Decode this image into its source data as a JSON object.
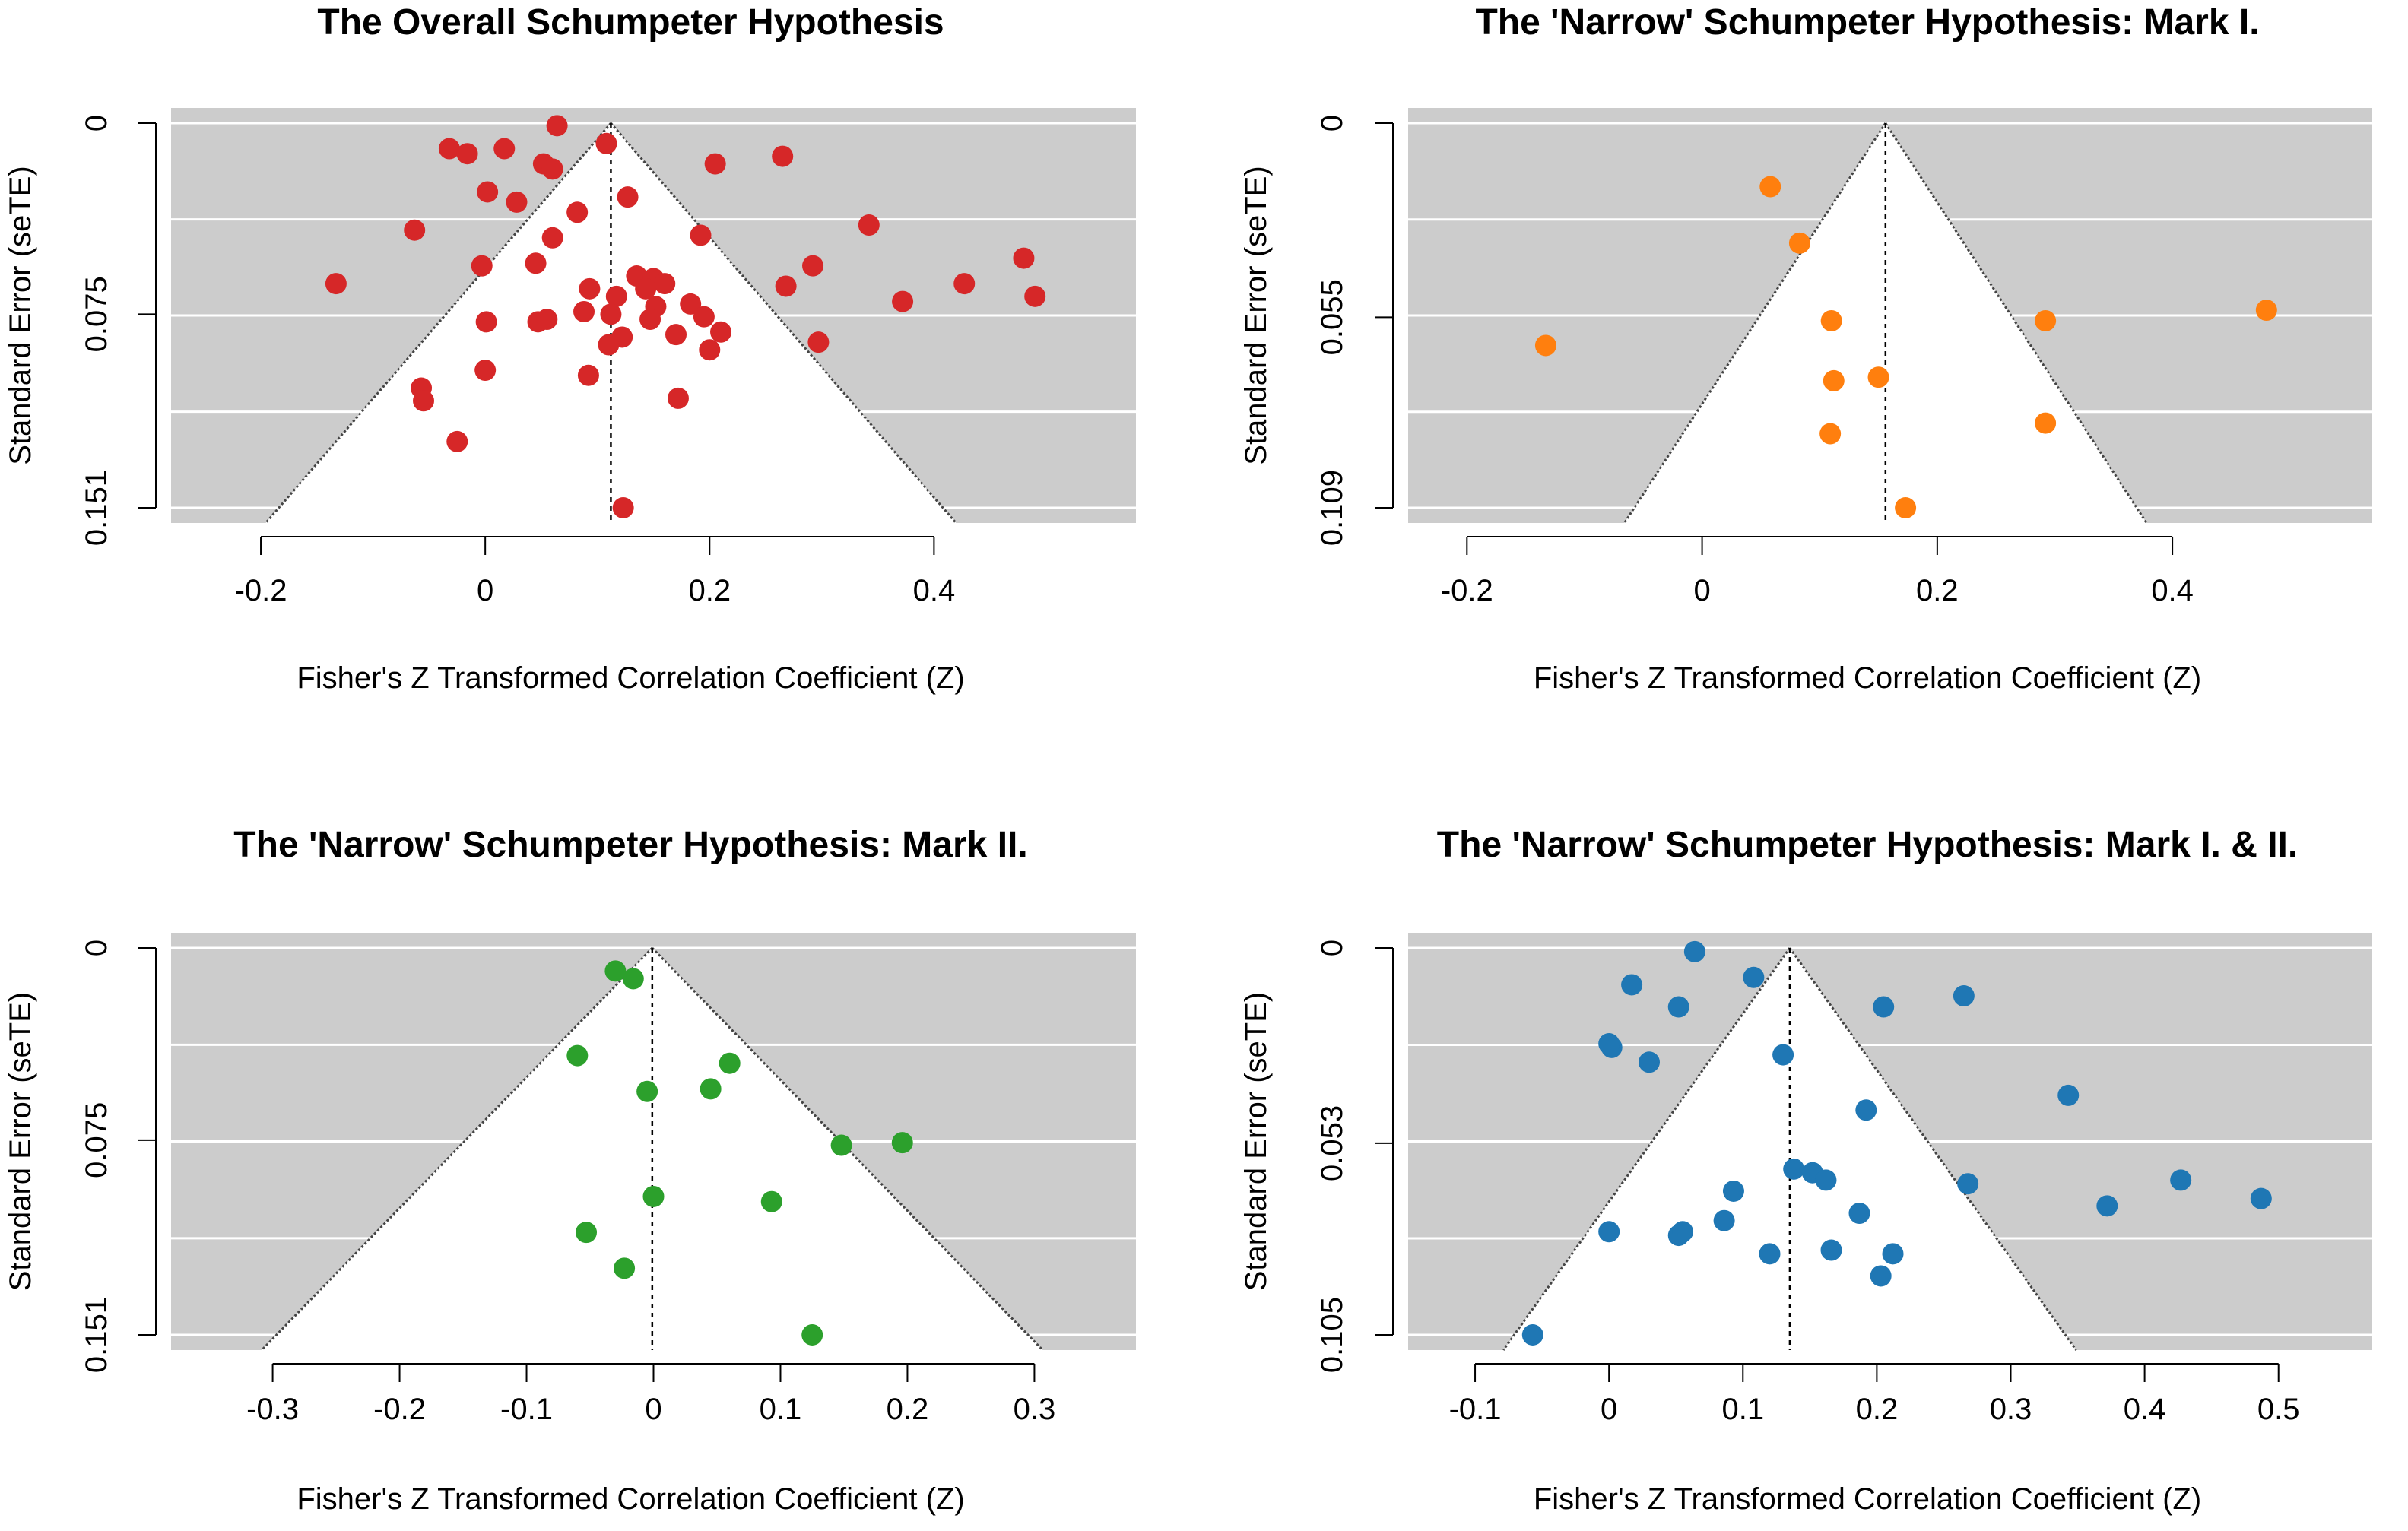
{
  "chart_data": [
    {
      "type": "scatter",
      "title": "The Overall Schumpeter Hypothesis",
      "xlabel": "Fisher's Z Transformed Correlation Coefficient (Z)",
      "ylabel": "Standard Error (seTE)",
      "xlim": [
        -0.28,
        0.58
      ],
      "ylim": [
        0.151,
        0
      ],
      "xticks": [
        -0.2,
        0,
        0.2,
        0.4
      ],
      "xtick_labels": [
        "-0.2",
        "0",
        "0.2",
        "0.4"
      ],
      "yticks": [
        0,
        0.075,
        0.151
      ],
      "ytick_labels": [
        "0",
        "0.075",
        "0.151"
      ],
      "y_gridlines": [
        0,
        0.0378,
        0.0755,
        0.1133,
        0.151
      ],
      "pooled_estimate": 0.112,
      "funnel": "pseudo 95% confidence region",
      "point_color": "#d62728",
      "points": [
        [
          0.064,
          0.001
        ],
        [
          -0.032,
          0.01
        ],
        [
          -0.016,
          0.012
        ],
        [
          0.017,
          0.01
        ],
        [
          0.108,
          0.008
        ],
        [
          0.052,
          0.016
        ],
        [
          0.06,
          0.018
        ],
        [
          0.205,
          0.016
        ],
        [
          0.265,
          0.013
        ],
        [
          0.002,
          0.027
        ],
        [
          0.028,
          0.031
        ],
        [
          0.127,
          0.029
        ],
        [
          0.082,
          0.035
        ],
        [
          -0.063,
          0.042
        ],
        [
          0.06,
          0.045
        ],
        [
          0.192,
          0.044
        ],
        [
          0.342,
          0.04
        ],
        [
          0.48,
          0.053
        ],
        [
          0.045,
          0.055
        ],
        [
          -0.003,
          0.056
        ],
        [
          0.292,
          0.056
        ],
        [
          -0.133,
          0.063
        ],
        [
          0.135,
          0.06
        ],
        [
          0.15,
          0.061
        ],
        [
          0.16,
          0.063
        ],
        [
          0.268,
          0.064
        ],
        [
          0.427,
          0.063
        ],
        [
          0.49,
          0.068
        ],
        [
          0.093,
          0.065
        ],
        [
          0.117,
          0.068
        ],
        [
          0.143,
          0.065
        ],
        [
          0.372,
          0.07
        ],
        [
          0.183,
          0.071
        ],
        [
          0.088,
          0.074
        ],
        [
          0.112,
          0.075
        ],
        [
          0.152,
          0.072
        ],
        [
          0.195,
          0.076
        ],
        [
          0.047,
          0.078
        ],
        [
          0.055,
          0.077
        ],
        [
          0.001,
          0.078
        ],
        [
          0.147,
          0.077
        ],
        [
          0.21,
          0.082
        ],
        [
          0.17,
          0.083
        ],
        [
          0.122,
          0.084
        ],
        [
          0.11,
          0.087
        ],
        [
          0.297,
          0.086
        ],
        [
          0.2,
          0.089
        ],
        [
          0.0,
          0.097
        ],
        [
          0.092,
          0.099
        ],
        [
          -0.057,
          0.104
        ],
        [
          -0.055,
          0.109
        ],
        [
          0.172,
          0.108
        ],
        [
          -0.025,
          0.125
        ],
        [
          0.123,
          0.151
        ]
      ]
    },
    {
      "type": "scatter",
      "title": "The 'Narrow' Schumpeter Hypothesis: Mark I.",
      "xlabel": "Fisher's Z Transformed Correlation Coefficient (Z)",
      "ylabel": "Standard Error (seTE)",
      "xlim": [
        -0.25,
        0.57
      ],
      "ylim": [
        0.109,
        0
      ],
      "xticks": [
        -0.2,
        0,
        0.2,
        0.4
      ],
      "xtick_labels": [
        "-0.2",
        "0",
        "0.2",
        "0.4"
      ],
      "yticks": [
        0,
        0.055,
        0.109
      ],
      "ytick_labels": [
        "0",
        "0.055",
        "0.109"
      ],
      "y_gridlines": [
        0,
        0.0273,
        0.0545,
        0.0818,
        0.109
      ],
      "pooled_estimate": 0.156,
      "funnel": "pseudo 95% confidence region",
      "point_color": "#ff7f0e",
      "points": [
        [
          0.058,
          0.018
        ],
        [
          0.083,
          0.034
        ],
        [
          0.11,
          0.056
        ],
        [
          0.292,
          0.056
        ],
        [
          0.48,
          0.053
        ],
        [
          -0.133,
          0.063
        ],
        [
          0.112,
          0.073
        ],
        [
          0.15,
          0.072
        ],
        [
          0.292,
          0.085
        ],
        [
          0.109,
          0.088
        ],
        [
          0.173,
          0.109
        ]
      ]
    },
    {
      "type": "scatter",
      "title": "The 'Narrow' Schumpeter Hypothesis: Mark II.",
      "xlabel": "Fisher's Z Transformed Correlation Coefficient (Z)",
      "ylabel": "Standard Error (seTE)",
      "xlim": [
        -0.38,
        0.38
      ],
      "ylim": [
        0.151,
        0
      ],
      "xticks": [
        -0.3,
        -0.2,
        -0.1,
        0,
        0.1,
        0.2,
        0.3
      ],
      "xtick_labels": [
        "-0.3",
        "-0.2",
        "-0.1",
        "0",
        "0.1",
        "0.2",
        "0.3"
      ],
      "yticks": [
        0,
        0.075,
        0.151
      ],
      "ytick_labels": [
        "0",
        "0.075",
        "0.151"
      ],
      "y_gridlines": [
        0,
        0.0378,
        0.0755,
        0.1133,
        0.151
      ],
      "pooled_estimate": -0.001,
      "funnel": "pseudo 95% confidence region",
      "point_color": "#2ca02c",
      "points": [
        [
          -0.03,
          0.009
        ],
        [
          -0.016,
          0.012
        ],
        [
          -0.06,
          0.042
        ],
        [
          0.06,
          0.045
        ],
        [
          -0.005,
          0.056
        ],
        [
          0.045,
          0.055
        ],
        [
          0.148,
          0.077
        ],
        [
          0.196,
          0.076
        ],
        [
          0.0,
          0.097
        ],
        [
          0.093,
          0.099
        ],
        [
          -0.053,
          0.111
        ],
        [
          -0.023,
          0.125
        ],
        [
          0.125,
          0.151
        ]
      ]
    },
    {
      "type": "scatter",
      "title": "The 'Narrow' Schumpeter Hypothesis: Mark I. & II.",
      "xlabel": "Fisher's Z Transformed Correlation Coefficient (Z)",
      "ylabel": "Standard Error (seTE)",
      "xlim": [
        -0.15,
        0.57
      ],
      "ylim": [
        0.105,
        0
      ],
      "xticks": [
        -0.1,
        0,
        0.1,
        0.2,
        0.3,
        0.4,
        0.5
      ],
      "xtick_labels": [
        "-0.1",
        "0",
        "0.1",
        "0.2",
        "0.3",
        "0.4",
        "0.5"
      ],
      "yticks": [
        0,
        0.053,
        0.105
      ],
      "ytick_labels": [
        "0",
        "0.053",
        "0.105"
      ],
      "y_gridlines": [
        0,
        0.0263,
        0.0525,
        0.0788,
        0.105
      ],
      "pooled_estimate": 0.135,
      "funnel": "pseudo 95% confidence region",
      "point_color": "#1f77b4",
      "points": [
        [
          0.064,
          0.001
        ],
        [
          0.108,
          0.008
        ],
        [
          0.017,
          0.01
        ],
        [
          0.052,
          0.016
        ],
        [
          0.205,
          0.016
        ],
        [
          0.265,
          0.013
        ],
        [
          0.002,
          0.027
        ],
        [
          0.0,
          0.026
        ],
        [
          0.03,
          0.031
        ],
        [
          0.13,
          0.029
        ],
        [
          0.343,
          0.04
        ],
        [
          0.192,
          0.044
        ],
        [
          0.138,
          0.06
        ],
        [
          0.152,
          0.061
        ],
        [
          0.162,
          0.063
        ],
        [
          0.268,
          0.064
        ],
        [
          0.427,
          0.063
        ],
        [
          0.487,
          0.068
        ],
        [
          0.093,
          0.066
        ],
        [
          0.372,
          0.07
        ],
        [
          0.187,
          0.072
        ],
        [
          0.086,
          0.074
        ],
        [
          0.0,
          0.077
        ],
        [
          0.052,
          0.078
        ],
        [
          0.055,
          0.077
        ],
        [
          0.12,
          0.083
        ],
        [
          0.166,
          0.082
        ],
        [
          0.212,
          0.083
        ],
        [
          0.203,
          0.089
        ],
        [
          -0.057,
          0.105
        ]
      ]
    }
  ]
}
